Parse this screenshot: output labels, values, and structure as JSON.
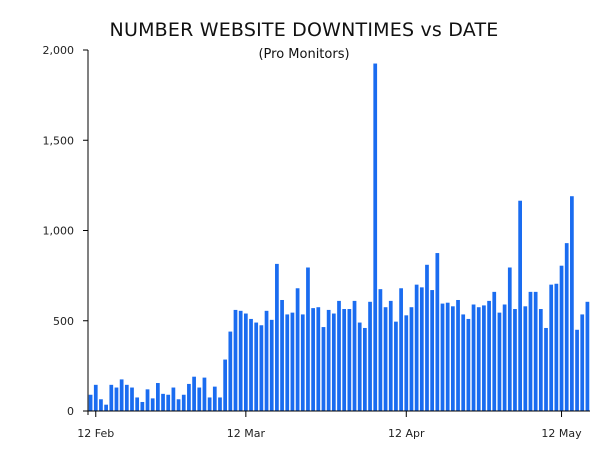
{
  "chart_data": {
    "type": "bar",
    "title": "NUMBER WEBSITE DOWNTIMES vs DATE",
    "subtitle": "(Pro Monitors)",
    "xlabel": "",
    "ylabel": "",
    "ylim": [
      0,
      2000
    ],
    "yticks": [
      0,
      500,
      1000,
      1500,
      2000
    ],
    "ytick_labels": [
      "0",
      "500",
      "1,000",
      "1,500",
      "2,000"
    ],
    "x_start": "Feb 11",
    "xticks": [
      {
        "label": "12 Feb",
        "index": 1
      },
      {
        "label": "12 Mar",
        "index": 30
      },
      {
        "label": "12 Apr",
        "index": 61
      },
      {
        "label": "12 May",
        "index": 91
      }
    ],
    "grid": false,
    "legend": "none",
    "bar_color": "#1a6cf0",
    "values": [
      90,
      145,
      65,
      35,
      145,
      130,
      175,
      145,
      130,
      75,
      50,
      120,
      70,
      155,
      95,
      90,
      130,
      65,
      90,
      150,
      190,
      130,
      185,
      75,
      135,
      75,
      285,
      440,
      560,
      555,
      540,
      510,
      490,
      475,
      555,
      505,
      815,
      615,
      535,
      545,
      680,
      535,
      795,
      570,
      575,
      465,
      560,
      540,
      610,
      565,
      565,
      610,
      490,
      460,
      605,
      1925,
      675,
      575,
      610,
      495,
      680,
      530,
      575,
      700,
      685,
      810,
      670,
      875,
      595,
      600,
      580,
      615,
      535,
      510,
      590,
      575,
      585,
      610,
      660,
      545,
      590,
      795,
      565,
      1165,
      580,
      660,
      660,
      565,
      460,
      700,
      705,
      805,
      930,
      1190,
      450,
      535,
      605
    ]
  }
}
